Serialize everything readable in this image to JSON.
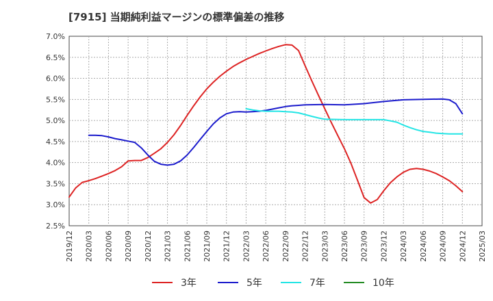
{
  "chart_data": {
    "type": "line",
    "title": "[7915]  当期純利益マージンの標準偏差の推移",
    "xlabel": "",
    "ylabel": "",
    "x_ticks": [
      "2019/12",
      "2020/03",
      "2020/06",
      "2020/09",
      "2020/12",
      "2021/03",
      "2021/06",
      "2021/09",
      "2021/12",
      "2022/03",
      "2022/06",
      "2022/09",
      "2022/12",
      "2023/03",
      "2023/06",
      "2023/09",
      "2023/12",
      "2024/03",
      "2024/06",
      "2024/09",
      "2024/12",
      "2025/03"
    ],
    "y_ticks": [
      "2.5%",
      "3.0%",
      "3.5%",
      "4.0%",
      "4.5%",
      "5.0%",
      "5.5%",
      "6.0%",
      "6.5%",
      "7.0%"
    ],
    "ylim": [
      2.5,
      7.0
    ],
    "xlim": [
      "2019/12",
      "2025/03"
    ],
    "grid": true,
    "legend_position": "bottom",
    "series": [
      {
        "name": "3年",
        "color": "#dd2222",
        "points": [
          [
            "2019/12",
            3.18
          ],
          [
            "2020/01",
            3.4
          ],
          [
            "2020/02",
            3.53
          ],
          [
            "2020/03",
            3.57
          ],
          [
            "2020/04",
            3.62
          ],
          [
            "2020/05",
            3.68
          ],
          [
            "2020/06",
            3.74
          ],
          [
            "2020/07",
            3.81
          ],
          [
            "2020/08",
            3.9
          ],
          [
            "2020/09",
            4.04
          ],
          [
            "2020/10",
            4.05
          ],
          [
            "2020/11",
            4.05
          ],
          [
            "2020/12",
            4.12
          ],
          [
            "2021/01",
            4.22
          ],
          [
            "2021/02",
            4.33
          ],
          [
            "2021/03",
            4.48
          ],
          [
            "2021/04",
            4.66
          ],
          [
            "2021/05",
            4.88
          ],
          [
            "2021/06",
            5.12
          ],
          [
            "2021/07",
            5.35
          ],
          [
            "2021/08",
            5.56
          ],
          [
            "2021/09",
            5.75
          ],
          [
            "2021/10",
            5.91
          ],
          [
            "2021/11",
            6.05
          ],
          [
            "2021/12",
            6.17
          ],
          [
            "2022/01",
            6.28
          ],
          [
            "2022/02",
            6.37
          ],
          [
            "2022/03",
            6.45
          ],
          [
            "2022/04",
            6.52
          ],
          [
            "2022/05",
            6.59
          ],
          [
            "2022/06",
            6.65
          ],
          [
            "2022/07",
            6.71
          ],
          [
            "2022/08",
            6.76
          ],
          [
            "2022/09",
            6.8
          ],
          [
            "2022/10",
            6.79
          ],
          [
            "2022/11",
            6.66
          ],
          [
            "2022/12",
            6.3
          ],
          [
            "2023/01",
            5.95
          ],
          [
            "2023/02",
            5.61
          ],
          [
            "2023/03",
            5.28
          ],
          [
            "2023/04",
            4.95
          ],
          [
            "2023/05",
            4.64
          ],
          [
            "2023/06",
            4.33
          ],
          [
            "2023/07",
            3.98
          ],
          [
            "2023/08",
            3.58
          ],
          [
            "2023/09",
            3.17
          ],
          [
            "2023/10",
            3.04
          ],
          [
            "2023/11",
            3.12
          ],
          [
            "2023/12",
            3.33
          ],
          [
            "2024/01",
            3.52
          ],
          [
            "2024/02",
            3.66
          ],
          [
            "2024/03",
            3.77
          ],
          [
            "2024/04",
            3.84
          ],
          [
            "2024/05",
            3.86
          ],
          [
            "2024/06",
            3.84
          ],
          [
            "2024/07",
            3.8
          ],
          [
            "2024/08",
            3.74
          ],
          [
            "2024/09",
            3.66
          ],
          [
            "2024/10",
            3.57
          ],
          [
            "2024/11",
            3.45
          ],
          [
            "2024/12",
            3.31
          ]
        ]
      },
      {
        "name": "5年",
        "color": "#1a1acc",
        "points": [
          [
            "2020/03",
            4.65
          ],
          [
            "2020/04",
            4.65
          ],
          [
            "2020/05",
            4.64
          ],
          [
            "2020/06",
            4.61
          ],
          [
            "2020/07",
            4.57
          ],
          [
            "2020/08",
            4.54
          ],
          [
            "2020/09",
            4.51
          ],
          [
            "2020/10",
            4.48
          ],
          [
            "2020/11",
            4.35
          ],
          [
            "2020/12",
            4.18
          ],
          [
            "2021/01",
            4.03
          ],
          [
            "2021/02",
            3.96
          ],
          [
            "2021/03",
            3.94
          ],
          [
            "2021/04",
            3.96
          ],
          [
            "2021/05",
            4.04
          ],
          [
            "2021/06",
            4.18
          ],
          [
            "2021/07",
            4.36
          ],
          [
            "2021/08",
            4.55
          ],
          [
            "2021/09",
            4.74
          ],
          [
            "2021/10",
            4.92
          ],
          [
            "2021/11",
            5.06
          ],
          [
            "2021/12",
            5.16
          ],
          [
            "2022/01",
            5.2
          ],
          [
            "2022/02",
            5.21
          ],
          [
            "2022/03",
            5.2
          ],
          [
            "2022/04",
            5.21
          ],
          [
            "2022/05",
            5.22
          ],
          [
            "2022/06",
            5.24
          ],
          [
            "2022/07",
            5.27
          ],
          [
            "2022/08",
            5.3
          ],
          [
            "2022/09",
            5.33
          ],
          [
            "2022/10",
            5.35
          ],
          [
            "2022/11",
            5.36
          ],
          [
            "2022/12",
            5.37
          ],
          [
            "2023/03",
            5.38
          ],
          [
            "2023/06",
            5.37
          ],
          [
            "2023/09",
            5.4
          ],
          [
            "2023/12",
            5.45
          ],
          [
            "2024/03",
            5.49
          ],
          [
            "2024/06",
            5.5
          ],
          [
            "2024/09",
            5.51
          ],
          [
            "2024/10",
            5.49
          ],
          [
            "2024/11",
            5.4
          ],
          [
            "2024/12",
            5.16
          ]
        ]
      },
      {
        "name": "7年",
        "color": "#22e5e5",
        "points": [
          [
            "2022/03",
            5.28
          ],
          [
            "2022/04",
            5.25
          ],
          [
            "2022/05",
            5.23
          ],
          [
            "2022/06",
            5.22
          ],
          [
            "2022/07",
            5.22
          ],
          [
            "2022/08",
            5.22
          ],
          [
            "2022/09",
            5.21
          ],
          [
            "2022/10",
            5.2
          ],
          [
            "2022/11",
            5.18
          ],
          [
            "2022/12",
            5.14
          ],
          [
            "2023/01",
            5.1
          ],
          [
            "2023/02",
            5.06
          ],
          [
            "2023/03",
            5.03
          ],
          [
            "2023/06",
            5.02
          ],
          [
            "2023/09",
            5.02
          ],
          [
            "2023/12",
            5.02
          ],
          [
            "2024/01",
            4.99
          ],
          [
            "2024/02",
            4.96
          ],
          [
            "2024/03",
            4.89
          ],
          [
            "2024/04",
            4.83
          ],
          [
            "2024/05",
            4.78
          ],
          [
            "2024/06",
            4.74
          ],
          [
            "2024/07",
            4.72
          ],
          [
            "2024/08",
            4.7
          ],
          [
            "2024/09",
            4.69
          ],
          [
            "2024/10",
            4.68
          ],
          [
            "2024/11",
            4.68
          ],
          [
            "2024/12",
            4.68
          ]
        ]
      },
      {
        "name": "10年",
        "color": "#228b22",
        "points": []
      }
    ]
  }
}
